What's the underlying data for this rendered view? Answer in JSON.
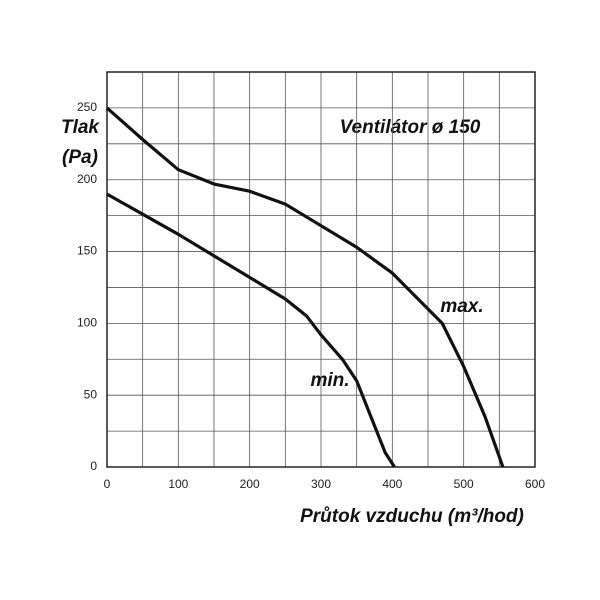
{
  "chart_data": {
    "type": "line",
    "title": "Ventilátor ø 150",
    "ylabel": [
      "Tlak",
      "(Pa)"
    ],
    "xlabel": "Průtok vzduchu (m³/hod)",
    "xlim": [
      0,
      600
    ],
    "xticks": [
      0,
      100,
      200,
      300,
      400,
      500,
      600
    ],
    "ylim": [
      0,
      275
    ],
    "yticks": [
      0,
      50,
      100,
      150,
      200,
      250
    ],
    "x_minor_grid": [
      50,
      150,
      250,
      350,
      450,
      550
    ],
    "y_minor_grid": [
      25,
      75,
      125,
      175,
      225,
      275
    ],
    "grid": true,
    "series": [
      {
        "name": "max.",
        "color": "#111111",
        "x": [
          0,
          50,
          100,
          150,
          200,
          250,
          300,
          350,
          400,
          450,
          470,
          500,
          530,
          555
        ],
        "values": [
          250,
          228,
          207,
          197,
          192,
          183,
          168,
          153,
          135,
          110,
          100,
          70,
          35,
          0
        ]
      },
      {
        "name": "min.",
        "color": "#111111",
        "x": [
          0,
          50,
          100,
          150,
          200,
          250,
          280,
          300,
          330,
          350,
          370,
          390,
          403
        ],
        "values": [
          190,
          176,
          162,
          147,
          132,
          117,
          105,
          92,
          75,
          60,
          35,
          10,
          0
        ]
      }
    ]
  }
}
